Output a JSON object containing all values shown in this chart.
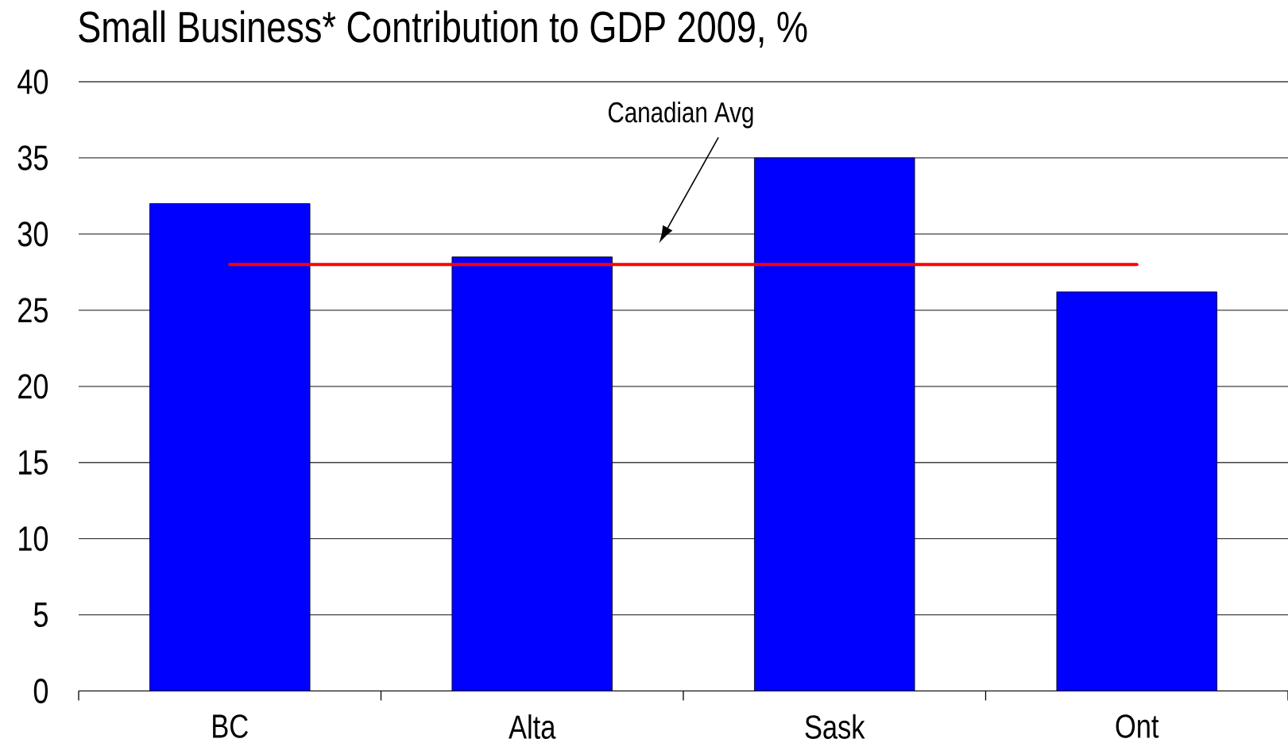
{
  "chart_data": {
    "type": "bar",
    "title": "Small Business* Contribution to GDP 2009, %",
    "categories": [
      "BC",
      "Alta",
      "Sask",
      "Ont"
    ],
    "values": [
      32,
      28.5,
      35,
      26.2
    ],
    "color": "#0000ff",
    "ylim": [
      0,
      40
    ],
    "yticks": [
      0,
      5,
      10,
      15,
      20,
      25,
      30,
      35,
      40
    ],
    "grid": "y",
    "ref_lines": [
      {
        "axis": "y",
        "value": 28,
        "color": "#ff0000"
      }
    ],
    "annotations": [
      "Canadian Avg"
    ]
  }
}
